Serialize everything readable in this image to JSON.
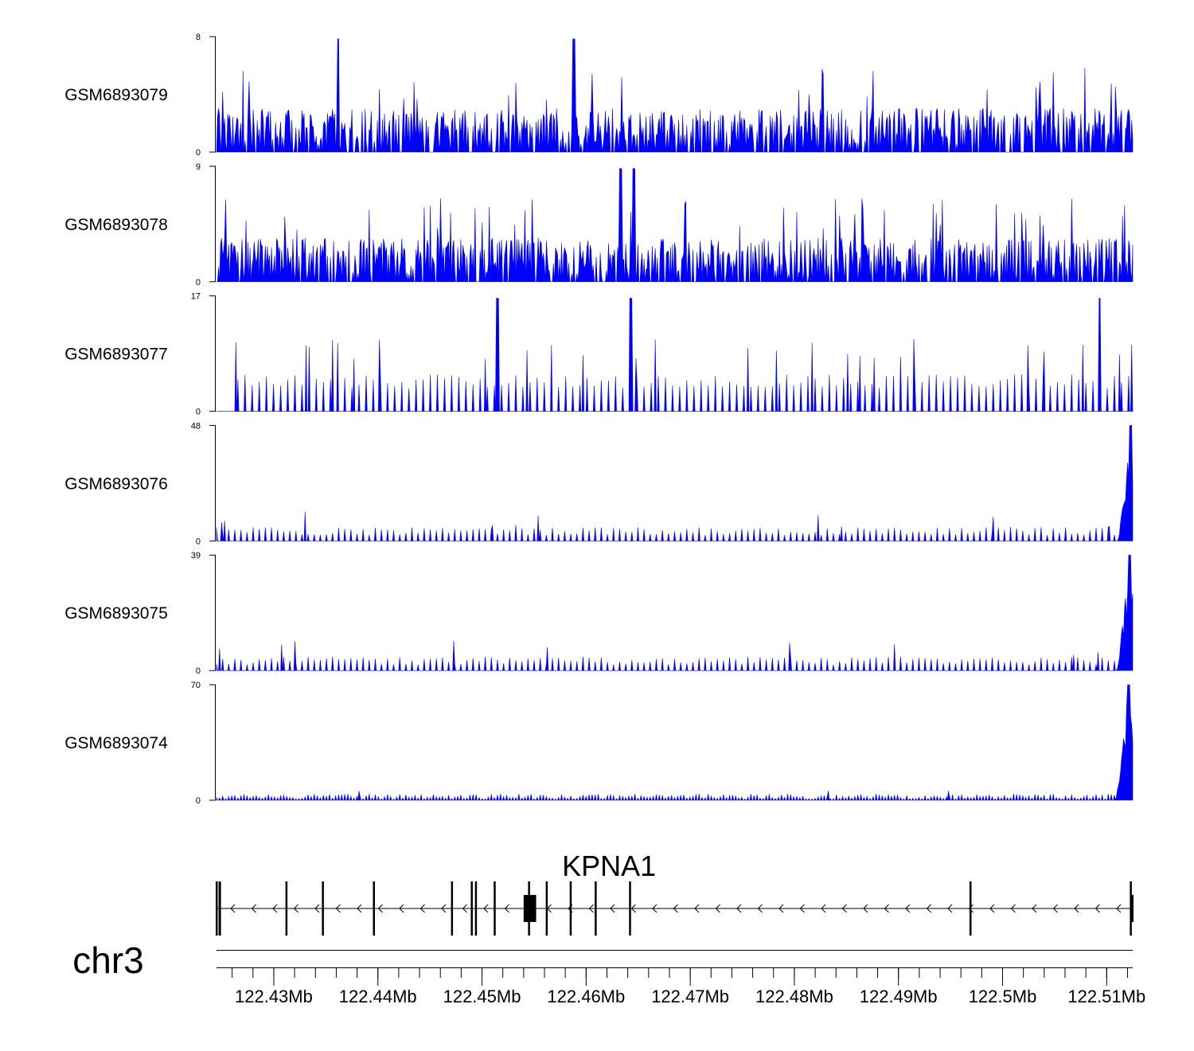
{
  "chart_data": {
    "type": "area",
    "title": "",
    "chromosome": "chr3",
    "region_mb": [
      122.4245,
      122.5125
    ],
    "series_color": "#0000ff",
    "tracks": [
      {
        "name": "GSM6893079",
        "ymax": 8,
        "ylim": [
          0,
          8
        ],
        "profile": "uniform-spiky",
        "tallest_peaks_mb": [
          122.4362,
          122.4588
        ]
      },
      {
        "name": "GSM6893078",
        "ymax": 9,
        "ylim": [
          0,
          9
        ],
        "profile": "uniform-spiky",
        "tallest_peaks_mb": [
          122.4633,
          122.4646
        ]
      },
      {
        "name": "GSM6893077",
        "ymax": 17,
        "ylim": [
          0,
          17
        ],
        "profile": "sparse-triangles",
        "tallest_peaks_mb": [
          122.4515,
          122.5093,
          122.4643
        ]
      },
      {
        "name": "GSM6893076",
        "ymax": 48,
        "ylim": [
          0,
          48
        ],
        "profile": "low-with-3prime-peak",
        "tallest_peaks_mb": [
          122.5123
        ]
      },
      {
        "name": "GSM6893075",
        "ymax": 39,
        "ylim": [
          0,
          39
        ],
        "profile": "low-with-3prime-peak",
        "tallest_peaks_mb": [
          122.5122
        ]
      },
      {
        "name": "GSM6893074",
        "ymax": 70,
        "ylim": [
          0,
          70
        ],
        "profile": "flat-with-3prime-peak",
        "tallest_peaks_mb": [
          122.5121
        ]
      }
    ],
    "gene": {
      "name": "KPNA1",
      "strand": "-",
      "start_mb": 122.4245,
      "end_mb": 122.5125,
      "exons_mb": [
        122.4245,
        122.4248,
        122.4312,
        122.4347,
        122.4396,
        122.4471,
        122.449,
        122.4494,
        122.4512,
        122.4545,
        122.4562,
        122.4585,
        122.4609,
        122.4642,
        122.4969,
        122.5123
      ],
      "coding_block_mb": [
        122.454,
        122.4552
      ]
    },
    "xaxis": {
      "ticks_mb": [
        122.43,
        122.44,
        122.45,
        122.46,
        122.47,
        122.48,
        122.49,
        122.5,
        122.51
      ],
      "tick_labels": [
        "122.43Mb",
        "122.44Mb",
        "122.45Mb",
        "122.46Mb",
        "122.47Mb",
        "122.48Mb",
        "122.49Mb",
        "122.5Mb",
        "122.51Mb"
      ],
      "minor_step_mb": 0.002
    }
  }
}
